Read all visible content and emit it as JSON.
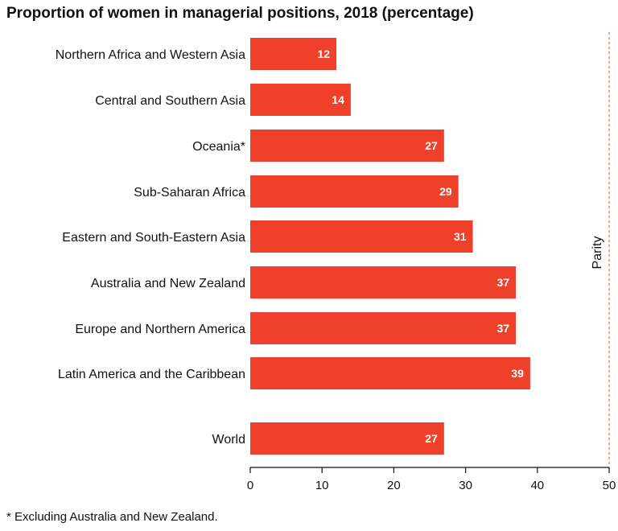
{
  "chart_data": {
    "type": "bar",
    "orientation": "horizontal",
    "title": "Proportion of women in managerial positions, 2018 (percentage)",
    "categories": [
      "Northern Africa and Western Asia",
      "Central and Southern Asia",
      "Oceania*",
      "Sub-Saharan Africa",
      "Eastern and South-Eastern Asia",
      "Australia and New Zealand",
      "Europe and Northern America",
      "Latin America and the Caribbean",
      "World"
    ],
    "values": [
      12,
      14,
      27,
      29,
      31,
      37,
      37,
      39,
      27
    ],
    "value_labels": [
      "12",
      "14",
      "27",
      "29",
      "31",
      "37",
      "37",
      "39",
      "27"
    ],
    "xlim": [
      0,
      50
    ],
    "xticks": [
      "0",
      "10",
      "20",
      "30",
      "40",
      "50"
    ],
    "bar_color": "#ef4129",
    "reference_line": {
      "label": "Parity",
      "value": 50,
      "color": "#ef4129",
      "style": "dashed"
    },
    "grid": false,
    "footnote": "* Excluding Australia and New Zealand."
  }
}
